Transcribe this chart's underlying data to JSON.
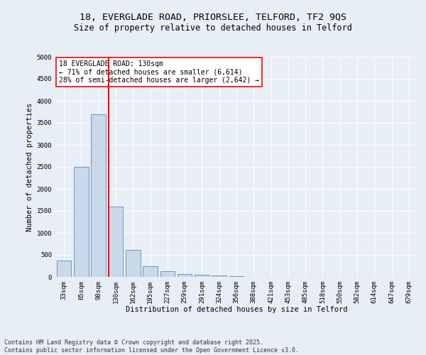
{
  "title_line1": "18, EVERGLADE ROAD, PRIORSLEE, TELFORD, TF2 9QS",
  "title_line2": "Size of property relative to detached houses in Telford",
  "categories": [
    "33sqm",
    "65sqm",
    "98sqm",
    "130sqm",
    "162sqm",
    "195sqm",
    "227sqm",
    "259sqm",
    "291sqm",
    "324sqm",
    "356sqm",
    "388sqm",
    "421sqm",
    "453sqm",
    "485sqm",
    "518sqm",
    "550sqm",
    "582sqm",
    "614sqm",
    "647sqm",
    "679sqm"
  ],
  "values": [
    370,
    2500,
    3700,
    1600,
    620,
    250,
    130,
    70,
    55,
    40,
    10,
    5,
    2,
    2,
    1,
    1,
    1,
    0,
    0,
    0,
    0
  ],
  "bar_color": "#c9d9ea",
  "bar_edge_color": "#5a8ab5",
  "vline_color": "red",
  "annotation_text": "18 EVERGLADE ROAD: 130sqm\n← 71% of detached houses are smaller (6,614)\n28% of semi-detached houses are larger (2,642) →",
  "annotation_box_color": "white",
  "annotation_box_edge": "red",
  "xlabel": "Distribution of detached houses by size in Telford",
  "ylabel": "Number of detached properties",
  "ylim": [
    0,
    5000
  ],
  "yticks": [
    0,
    500,
    1000,
    1500,
    2000,
    2500,
    3000,
    3500,
    4000,
    4500,
    5000
  ],
  "footer_line1": "Contains HM Land Registry data © Crown copyright and database right 2025.",
  "footer_line2": "Contains public sector information licensed under the Open Government Licence v3.0.",
  "bg_color": "#e8eef5",
  "plot_bg_color": "#e8eef5",
  "grid_color": "white",
  "title_fontsize": 9.5,
  "subtitle_fontsize": 8.5,
  "label_fontsize": 7.5,
  "tick_fontsize": 6.5,
  "annot_fontsize": 7,
  "footer_fontsize": 6
}
